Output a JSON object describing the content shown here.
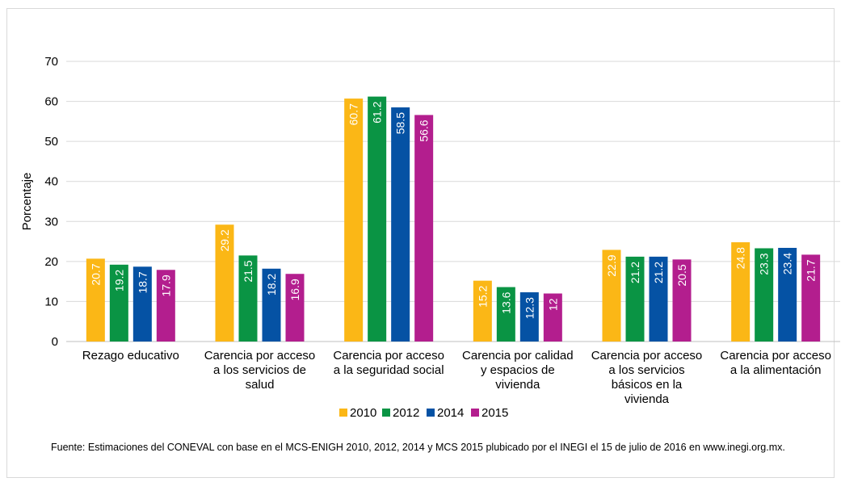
{
  "chart_data": {
    "type": "bar",
    "ylabel": "Porcentaje",
    "ylim": [
      0,
      70
    ],
    "yticks": [
      0,
      10,
      20,
      30,
      40,
      50,
      60,
      70
    ],
    "grid": true,
    "legend_position": "bottom",
    "categories": [
      [
        "Rezago educativo"
      ],
      [
        "Carencia por acceso",
        "a los servicios de",
        "salud"
      ],
      [
        "Carencia por acceso",
        "a la seguridad social"
      ],
      [
        "Carencia por calidad",
        "y espacios de",
        "vivienda"
      ],
      [
        "Carencia por acceso",
        "a los servicios",
        "básicos en la",
        "vivienda"
      ],
      [
        "Carencia por acceso",
        "a la alimentación"
      ]
    ],
    "series": [
      {
        "name": "2010",
        "color": "#fbb716",
        "values": [
          20.7,
          29.2,
          60.7,
          15.2,
          22.9,
          24.8
        ]
      },
      {
        "name": "2012",
        "color": "#0a9444",
        "values": [
          19.2,
          21.5,
          61.2,
          13.6,
          21.2,
          23.3
        ]
      },
      {
        "name": "2014",
        "color": "#0552a4",
        "values": [
          18.7,
          18.2,
          58.5,
          12.3,
          21.2,
          23.4
        ]
      },
      {
        "name": "2015",
        "color": "#b31e8e",
        "values": [
          17.9,
          16.9,
          56.6,
          12,
          20.5,
          21.7
        ]
      }
    ],
    "value_labels": [
      [
        "20.7",
        "29.2",
        "60.7",
        "15.2",
        "22.9",
        "24.8"
      ],
      [
        "19.2",
        "21.5",
        "61.2",
        "13.6",
        "21.2",
        "23.3"
      ],
      [
        "18.7",
        "18.2",
        "58.5",
        "12.3",
        "21.2",
        "23.4"
      ],
      [
        "17.9",
        "16.9",
        "56.6",
        "12",
        "20.5",
        "21.7"
      ]
    ]
  },
  "source_note": "Fuente: Estimaciones del CONEVAL con base en el MCS-ENIGH 2010, 2012, 2014 y MCS 2015 plubicado por el INEGI el 15 de julio de 2016 en www.inegi.org.mx."
}
